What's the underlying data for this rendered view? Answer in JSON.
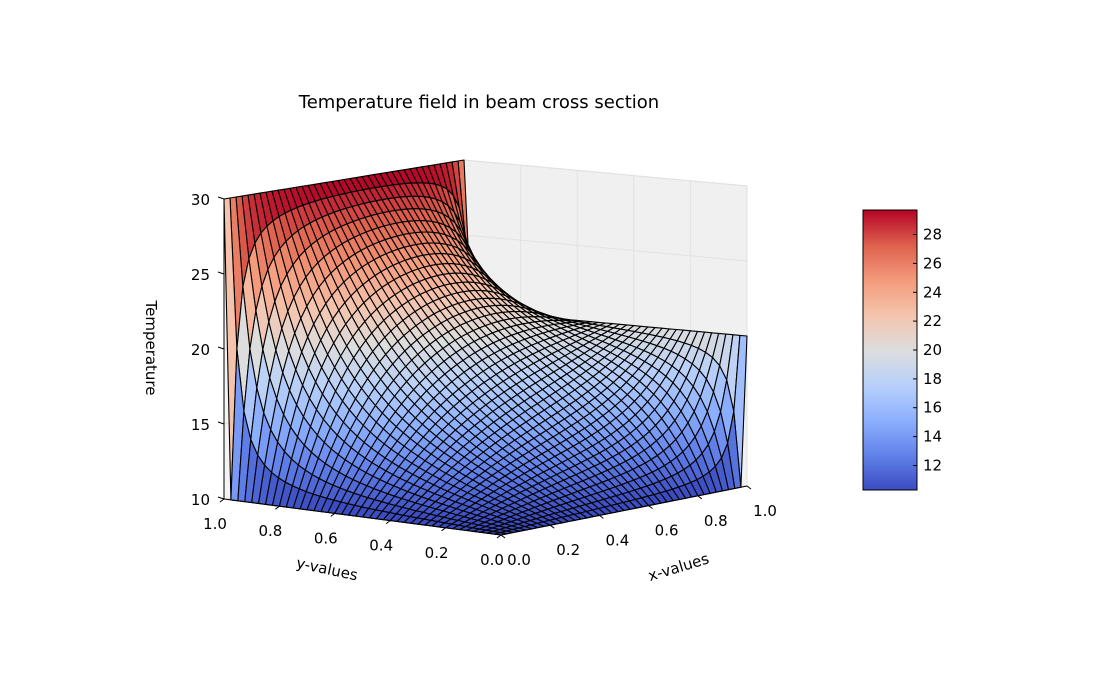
{
  "chart_data": {
    "type": "surface",
    "title": "Temperature field in beam cross section",
    "xlabel": "x-values",
    "ylabel": "y-values",
    "zlabel": "Temperature",
    "xlim": [
      0.0,
      1.0
    ],
    "ylim": [
      0.0,
      1.0
    ],
    "zlim": [
      10,
      30
    ],
    "x_ticks": [
      "0.0",
      "0.2",
      "0.4",
      "0.6",
      "0.8",
      "1.0"
    ],
    "y_ticks": [
      "0.0",
      "0.2",
      "0.4",
      "0.6",
      "0.8",
      "1.0"
    ],
    "z_ticks": [
      "10",
      "15",
      "20",
      "25",
      "30"
    ],
    "colormap": "coolwarm",
    "colorbar": {
      "range": [
        10.3,
        29.7
      ],
      "ticks": [
        "12",
        "14",
        "16",
        "18",
        "20",
        "22",
        "24",
        "26",
        "28"
      ]
    },
    "grid": true,
    "surface": {
      "grid_points": 41,
      "values": {
        "edge_y_equals_1": 30,
        "edge_y_equals_0": 10,
        "edge_x_equals_0": 10,
        "edge_x_equals_1": 20
      }
    }
  }
}
